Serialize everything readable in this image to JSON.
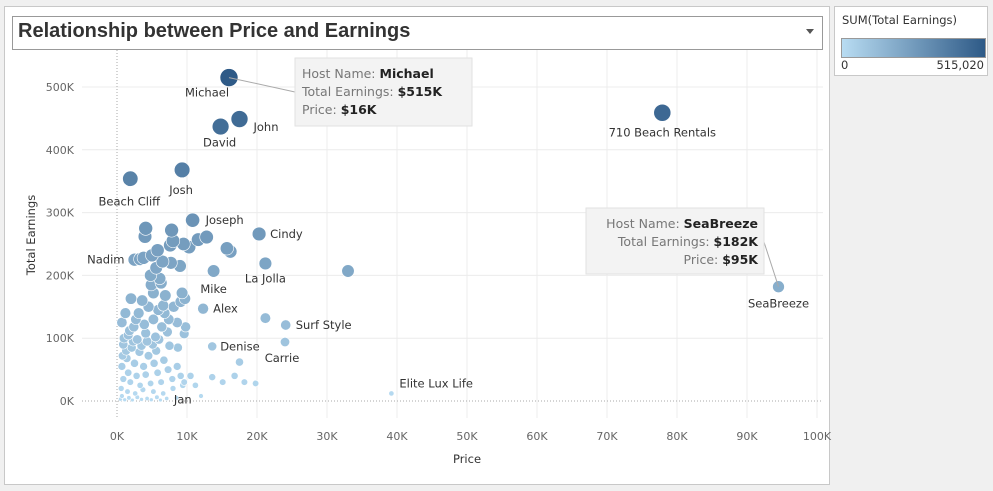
{
  "title": "Relationship between Price and Earnings",
  "legend": {
    "title": "SUM(Total Earnings)",
    "min_label": "0",
    "max_label": "515,020",
    "color_low": "#b8dcf2",
    "color_high": "#2e5a87"
  },
  "tooltips": [
    {
      "lines": [
        {
          "label": "Host Name: ",
          "value": "Michael"
        },
        {
          "label": "Total Earnings: ",
          "value": "$515K"
        },
        {
          "label": "Price: ",
          "value": "$16K"
        }
      ],
      "align": "left"
    },
    {
      "lines": [
        {
          "label": "Host Name: ",
          "value": "SeaBreeze"
        },
        {
          "label": "Total Earnings: ",
          "value": "$182K"
        },
        {
          "label": "Price: ",
          "value": "$95K"
        }
      ],
      "align": "right"
    }
  ],
  "chart_data": {
    "type": "scatter",
    "xlabel": "Price",
    "ylabel": "Total Earnings",
    "xlim": [
      0,
      100000
    ],
    "ylim": [
      0,
      550000
    ],
    "x_ticks": [
      0,
      10000,
      20000,
      30000,
      40000,
      50000,
      60000,
      70000,
      80000,
      90000,
      100000
    ],
    "x_tick_labels": [
      "0K",
      "10K",
      "20K",
      "30K",
      "40K",
      "50K",
      "60K",
      "70K",
      "80K",
      "90K",
      "100K"
    ],
    "y_ticks": [
      0,
      100000,
      200000,
      300000,
      400000,
      500000
    ],
    "y_tick_labels": [
      "0K",
      "100K",
      "200K",
      "300K",
      "400K",
      "500K"
    ],
    "grid": true,
    "points": [
      {
        "name": "Michael",
        "x": 16000,
        "y": 515000
      },
      {
        "name": "710 Beach Rentals",
        "x": 77900,
        "y": 459000
      },
      {
        "name": "John",
        "x": 17500,
        "y": 449000
      },
      {
        "name": "David",
        "x": 14800,
        "y": 437000
      },
      {
        "name": "Josh",
        "x": 9300,
        "y": 368000
      },
      {
        "name": "Beach Cliff",
        "x": 1900,
        "y": 354000
      },
      {
        "name": "Joseph",
        "x": 10800,
        "y": 288000
      },
      {
        "name": "Cindy",
        "x": 20300,
        "y": 266000
      },
      {
        "name": "Nadim",
        "x": 2500,
        "y": 225000
      },
      {
        "name": "La Jolla",
        "x": 21200,
        "y": 219000
      },
      {
        "name": "Mike",
        "x": 13800,
        "y": 207000
      },
      {
        "name": "SeaBreeze",
        "x": 94500,
        "y": 182000
      },
      {
        "name": "Alex",
        "x": 12300,
        "y": 147000
      },
      {
        "name": "Surf Style",
        "x": 24100,
        "y": 121000
      },
      {
        "name": "Carrie",
        "x": 24000,
        "y": 94000
      },
      {
        "name": "Denise",
        "x": 13600,
        "y": 87000
      },
      {
        "name": "Elite Lux Life",
        "x": 39200,
        "y": 12000
      },
      {
        "name": "Jan",
        "x": 9400,
        "y": 25000
      },
      {
        "x": 33000,
        "y": 207000
      },
      {
        "x": 21200,
        "y": 132000
      },
      {
        "x": 16200,
        "y": 238000
      },
      {
        "x": 15700,
        "y": 243000
      },
      {
        "x": 12800,
        "y": 261000
      },
      {
        "x": 11600,
        "y": 257000
      },
      {
        "x": 10300,
        "y": 245000
      },
      {
        "x": 9500,
        "y": 250000
      },
      {
        "x": 7800,
        "y": 272000
      },
      {
        "x": 8000,
        "y": 255000
      },
      {
        "x": 7600,
        "y": 248000
      },
      {
        "x": 5800,
        "y": 240000
      },
      {
        "x": 4100,
        "y": 275000
      },
      {
        "x": 4000,
        "y": 262000
      },
      {
        "x": 3800,
        "y": 228000
      },
      {
        "x": 3300,
        "y": 226000
      },
      {
        "x": 5000,
        "y": 232000
      },
      {
        "x": 6500,
        "y": 222000
      },
      {
        "x": 9000,
        "y": 215000
      },
      {
        "x": 7700,
        "y": 220000
      },
      {
        "x": 5600,
        "y": 212000
      },
      {
        "x": 4800,
        "y": 200000
      },
      {
        "x": 6100,
        "y": 195000
      },
      {
        "x": 6300,
        "y": 188000
      },
      {
        "x": 4900,
        "y": 185000
      },
      {
        "x": 5200,
        "y": 172000
      },
      {
        "x": 6900,
        "y": 168000
      },
      {
        "x": 9300,
        "y": 172000
      },
      {
        "x": 9700,
        "y": 163000
      },
      {
        "x": 9100,
        "y": 158000
      },
      {
        "x": 6600,
        "y": 152000
      },
      {
        "x": 5900,
        "y": 145000
      },
      {
        "x": 4500,
        "y": 150000
      },
      {
        "x": 3600,
        "y": 160000
      },
      {
        "x": 2000,
        "y": 163000
      },
      {
        "x": 1200,
        "y": 140000
      },
      {
        "x": 2700,
        "y": 130000
      },
      {
        "x": 3900,
        "y": 122000
      },
      {
        "x": 5200,
        "y": 130000
      },
      {
        "x": 6400,
        "y": 118000
      },
      {
        "x": 9800,
        "y": 118000
      },
      {
        "x": 9600,
        "y": 107000
      },
      {
        "x": 7200,
        "y": 110000
      },
      {
        "x": 5500,
        "y": 102000
      },
      {
        "x": 4100,
        "y": 108000
      },
      {
        "x": 2900,
        "y": 98000
      },
      {
        "x": 1800,
        "y": 112000
      },
      {
        "x": 700,
        "y": 125000
      },
      {
        "x": 900,
        "y": 90000
      },
      {
        "x": 2100,
        "y": 85000
      },
      {
        "x": 3200,
        "y": 78000
      },
      {
        "x": 4500,
        "y": 72000
      },
      {
        "x": 5600,
        "y": 80000
      },
      {
        "x": 7500,
        "y": 88000
      },
      {
        "x": 8700,
        "y": 85000
      },
      {
        "x": 6700,
        "y": 65000
      },
      {
        "x": 5300,
        "y": 60000
      },
      {
        "x": 3800,
        "y": 55000
      },
      {
        "x": 2500,
        "y": 60000
      },
      {
        "x": 1400,
        "y": 68000
      },
      {
        "x": 700,
        "y": 55000
      },
      {
        "x": 1600,
        "y": 45000
      },
      {
        "x": 2800,
        "y": 40000
      },
      {
        "x": 4100,
        "y": 42000
      },
      {
        "x": 5800,
        "y": 45000
      },
      {
        "x": 7300,
        "y": 50000
      },
      {
        "x": 8600,
        "y": 55000
      },
      {
        "x": 9100,
        "y": 40000
      },
      {
        "x": 7900,
        "y": 35000
      },
      {
        "x": 6300,
        "y": 30000
      },
      {
        "x": 4800,
        "y": 28000
      },
      {
        "x": 3300,
        "y": 25000
      },
      {
        "x": 1900,
        "y": 30000
      },
      {
        "x": 900,
        "y": 35000
      },
      {
        "x": 600,
        "y": 20000
      },
      {
        "x": 1500,
        "y": 15000
      },
      {
        "x": 2600,
        "y": 12000
      },
      {
        "x": 3700,
        "y": 18000
      },
      {
        "x": 5200,
        "y": 15000
      },
      {
        "x": 6600,
        "y": 12000
      },
      {
        "x": 8000,
        "y": 20000
      },
      {
        "x": 9600,
        "y": 30000
      },
      {
        "x": 10500,
        "y": 40000
      },
      {
        "x": 11200,
        "y": 25000
      },
      {
        "x": 13600,
        "y": 38000
      },
      {
        "x": 15100,
        "y": 30000
      },
      {
        "x": 16800,
        "y": 40000
      },
      {
        "x": 17500,
        "y": 62000
      },
      {
        "x": 18200,
        "y": 30000
      },
      {
        "x": 19800,
        "y": 28000
      },
      {
        "x": 700,
        "y": 8000
      },
      {
        "x": 1700,
        "y": 5000
      },
      {
        "x": 2900,
        "y": 6000
      },
      {
        "x": 4300,
        "y": 4000
      },
      {
        "x": 5700,
        "y": 6000
      },
      {
        "x": 7100,
        "y": 4000
      },
      {
        "x": 500,
        "y": 3000
      },
      {
        "x": 1100,
        "y": 2000
      },
      {
        "x": 2200,
        "y": 1500
      },
      {
        "x": 3500,
        "y": 2500
      },
      {
        "x": 4900,
        "y": 2000
      },
      {
        "x": 6200,
        "y": 1500
      },
      {
        "x": 8500,
        "y": 5000
      },
      {
        "x": 12000,
        "y": 8000
      },
      {
        "x": 800,
        "y": 72000
      },
      {
        "x": 1300,
        "y": 80000
      },
      {
        "x": 2300,
        "y": 95000
      },
      {
        "x": 3500,
        "y": 88000
      },
      {
        "x": 1000,
        "y": 100000
      },
      {
        "x": 1600,
        "y": 105000
      },
      {
        "x": 2400,
        "y": 118000
      },
      {
        "x": 3100,
        "y": 140000
      },
      {
        "x": 4300,
        "y": 95000
      },
      {
        "x": 5100,
        "y": 90000
      },
      {
        "x": 6000,
        "y": 98000
      },
      {
        "x": 6800,
        "y": 140000
      },
      {
        "x": 7400,
        "y": 130000
      },
      {
        "x": 8100,
        "y": 150000
      },
      {
        "x": 8600,
        "y": 125000
      }
    ]
  }
}
